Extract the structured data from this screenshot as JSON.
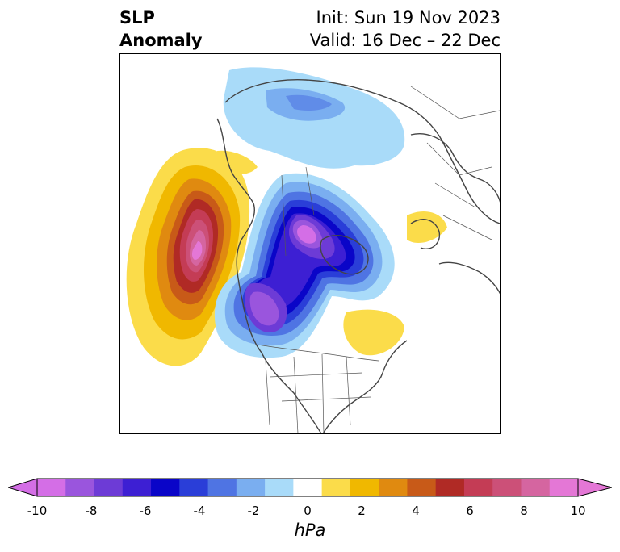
{
  "title": {
    "left_line1": "SLP",
    "left_line2": "Anomaly",
    "right_line1": "Init: Sun 19 Nov 2023",
    "right_line2": "Valid: 16 Dec – 22 Dec"
  },
  "colorbar": {
    "units": "hPa",
    "ticks": [
      "-10",
      "-8",
      "-6",
      "-4",
      "-2",
      "0",
      "2",
      "4",
      "6",
      "8",
      "10"
    ],
    "colors": [
      "#d46ee6",
      "#9a55dd",
      "#6d3bd6",
      "#3d1fd3",
      "#0a05c8",
      "#2a3ed8",
      "#4f74e3",
      "#7aaef0",
      "#a9dbf9",
      "#ffffff",
      "#fbdc4a",
      "#f0b800",
      "#e08a10",
      "#c85a18",
      "#b02a25",
      "#c43c55",
      "#cc5078",
      "#d565a0",
      "#e477d6"
    ]
  },
  "map": {
    "projection": "north-polar-stereographic",
    "field": "SLP anomaly"
  }
}
